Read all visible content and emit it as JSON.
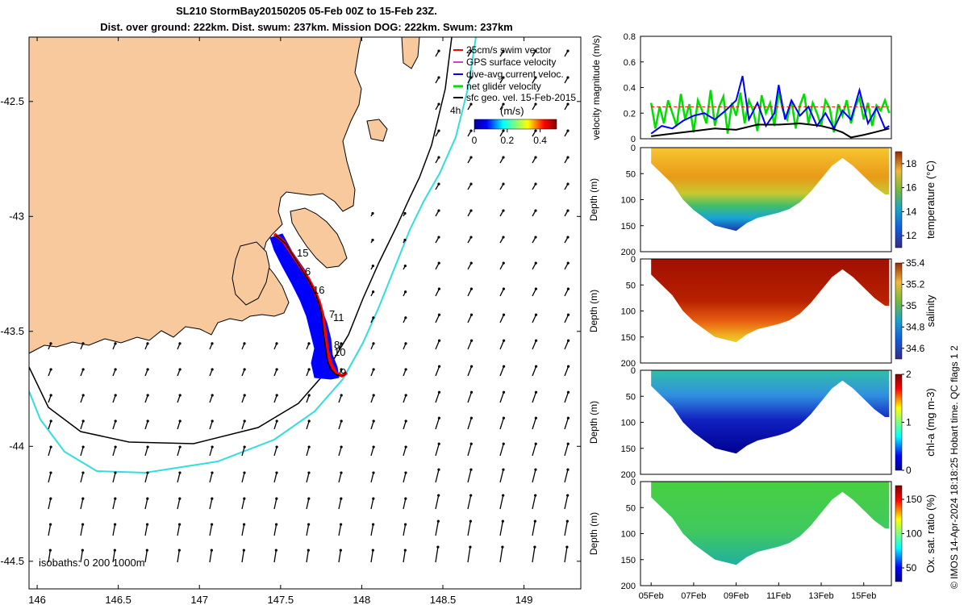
{
  "title_line1": "SL210 StormBay20150205 05-Feb 00Z to 15-Feb 23Z.",
  "title_line2": "Dist. over ground: 222km. Dist. swum: 237km. Mission DOG: 222km. Swum: 237km",
  "credit": "© IMOS 14-Apr-2024 18:18:25 Hobart time. QC flags 1  2",
  "colors": {
    "land": "#f8c99c",
    "swim": "#ff0000",
    "gps": "#cc44cc",
    "diveavg": "#0000ff",
    "net": "#00dd00",
    "sfc": "#000000",
    "iso1000": "#33dddd"
  },
  "chart_data": [
    {
      "type": "map",
      "lon_range": [
        145.95,
        149.35
      ],
      "lat_range": [
        -44.62,
        -42.22
      ],
      "x_ticks": [
        146,
        146.5,
        147,
        147.5,
        148,
        148.5,
        149
      ],
      "y_ticks": [
        -42.5,
        -43,
        -43.5,
        -44,
        -44.5
      ],
      "x_tick_labels": [
        "146",
        "146.5",
        "147",
        "147.5",
        "148",
        "148.5",
        "149"
      ],
      "y_tick_labels": [
        "-42.5",
        "-43",
        "-43.5",
        "-44",
        "-44.5"
      ],
      "legend": [
        "25cm/s swim vector",
        "GPS surface velocity",
        "dive-avg current veloc.",
        "net glider velocity",
        "sfc geo. vel. 15-Feb-2015"
      ],
      "colorbar": {
        "label": "(m/s)",
        "range": [
          0,
          0.5
        ],
        "tick_labels": [
          "0",
          "0.2",
          "0.4"
        ]
      },
      "note": "4h",
      "isobaths_label": "isobaths: 0   200  1000m",
      "day_labels": [
        "15",
        "6",
        "16",
        "7",
        "11",
        "8",
        "10",
        "9"
      ]
    },
    {
      "type": "line",
      "ylabel": "velocity magnitude (m/s)",
      "ylim": [
        0,
        0.8
      ],
      "y_tick_labels": [
        "0",
        "0.2",
        "0.4",
        "0.6",
        "0.8"
      ],
      "x_range_days": [
        4.5,
        16.3
      ],
      "series": [
        {
          "name": "net glider velocity",
          "x": [
            5.0,
            5.2,
            5.4,
            5.6,
            5.8,
            6.0,
            6.2,
            6.4,
            6.6,
            6.8,
            7.0,
            7.2,
            7.4,
            7.6,
            7.8,
            8.0,
            8.2,
            8.4,
            8.6,
            8.8,
            9.0,
            9.2,
            9.4,
            9.6,
            9.8,
            10.0,
            10.2,
            10.4,
            10.6,
            10.8,
            11.0,
            11.2,
            11.4,
            11.6,
            11.8,
            12.0,
            12.2,
            12.4,
            12.6,
            12.8,
            13.0,
            13.2,
            13.4,
            13.6,
            13.8,
            14.0,
            14.2,
            14.4,
            14.6,
            14.8,
            15.0,
            15.2,
            15.4,
            15.6,
            15.8,
            16.0,
            16.2
          ],
          "y": [
            0.28,
            0.08,
            0.25,
            0.12,
            0.3,
            0.2,
            0.1,
            0.35,
            0.15,
            0.27,
            0.05,
            0.3,
            0.22,
            0.12,
            0.38,
            0.1,
            0.25,
            0.33,
            0.04,
            0.28,
            0.18,
            0.36,
            0.12,
            0.3,
            0.22,
            0.06,
            0.34,
            0.2,
            0.28,
            0.1,
            0.37,
            0.22,
            0.15,
            0.3,
            0.08,
            0.26,
            0.35,
            0.12,
            0.28,
            0.2,
            0.1,
            0.3,
            0.24,
            0.05,
            0.27,
            0.18,
            0.3,
            0.12,
            0.25,
            0.32,
            0.15,
            0.28,
            0.1,
            0.26,
            0.22,
            0.3,
            0.2
          ]
        },
        {
          "name": "dive-avg current veloc.",
          "x": [
            5.0,
            5.5,
            6.0,
            6.5,
            7.0,
            7.5,
            8.0,
            8.5,
            9.0,
            9.3,
            9.6,
            10.0,
            10.4,
            10.8,
            11.0,
            11.3,
            11.6,
            12.0,
            12.4,
            12.8,
            13.2,
            13.6,
            14.0,
            14.4,
            14.8,
            15.2,
            15.6,
            16.0,
            16.2
          ],
          "y": [
            0.04,
            0.1,
            0.08,
            0.14,
            0.18,
            0.2,
            0.15,
            0.22,
            0.3,
            0.49,
            0.15,
            0.28,
            0.1,
            0.2,
            0.42,
            0.15,
            0.3,
            0.18,
            0.25,
            0.1,
            0.2,
            0.08,
            0.22,
            0.15,
            0.38,
            0.12,
            0.24,
            0.08,
            0.1
          ]
        },
        {
          "name": "sfc geo. vel.",
          "x": [
            5.0,
            6.0,
            7.0,
            8.0,
            9.0,
            10.0,
            11.0,
            12.0,
            12.5,
            13.0,
            13.5,
            14.0,
            14.4,
            15.0,
            15.5,
            16.2
          ],
          "y": [
            0.02,
            0.04,
            0.06,
            0.08,
            0.07,
            0.11,
            0.11,
            0.12,
            0.11,
            0.1,
            0.08,
            0.05,
            0.01,
            0.03,
            0.05,
            0.08
          ]
        },
        {
          "name": "swim speed",
          "x": [
            5.0,
            16.2
          ],
          "y": [
            0.25,
            0.25
          ]
        }
      ]
    },
    {
      "type": "heatmap",
      "variable": "temperature (°C)",
      "ylabel": "Depth (m)",
      "ylim": [
        200,
        0
      ],
      "y_tick_labels": [
        "0",
        "50",
        "100",
        "150",
        "200"
      ],
      "colorbar_range": [
        11,
        19
      ],
      "colorbar_tick_labels": [
        "12",
        "14",
        "16",
        "18"
      ]
    },
    {
      "type": "heatmap",
      "variable": "salinity",
      "ylabel": "Depth (m)",
      "ylim": [
        200,
        0
      ],
      "y_tick_labels": [
        "0",
        "50",
        "100",
        "150",
        "200"
      ],
      "colorbar_range": [
        34.5,
        35.4
      ],
      "colorbar_tick_labels": [
        "35.4",
        "35.2",
        "35",
        "34.8",
        "34.6"
      ]
    },
    {
      "type": "heatmap",
      "variable": "chl-a (mg m-3)",
      "ylabel": "Depth (m)",
      "ylim": [
        200,
        0
      ],
      "y_tick_labels": [
        "0",
        "50",
        "100",
        "150",
        "200"
      ],
      "colorbar_range": [
        0,
        2
      ],
      "colorbar_tick_labels": [
        "2",
        "1",
        "0"
      ]
    },
    {
      "type": "heatmap",
      "variable": "Ox. sat. ratio (%)",
      "ylabel": "Depth (m)",
      "ylim": [
        200,
        0
      ],
      "y_tick_labels": [
        "0",
        "50",
        "100",
        "150",
        "200"
      ],
      "colorbar_range": [
        30,
        170
      ],
      "colorbar_tick_labels": [
        "150",
        "100",
        "50"
      ],
      "x_tick_labels": [
        "05Feb",
        "07Feb",
        "09Feb",
        "11Feb",
        "13Feb",
        "15Feb"
      ]
    }
  ]
}
